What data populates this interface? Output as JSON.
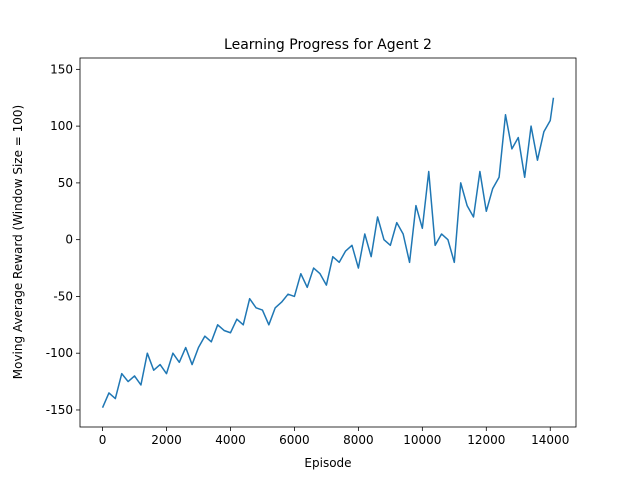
{
  "chart_data": {
    "type": "line",
    "title": "Learning Progress for Agent 2",
    "xlabel": "Episode",
    "ylabel": "Moving Average Reward (Window Size = 100)",
    "color": "#1f77b4",
    "x": [
      0,
      200,
      400,
      600,
      800,
      1000,
      1200,
      1400,
      1600,
      1800,
      2000,
      2200,
      2400,
      2600,
      2800,
      3000,
      3200,
      3400,
      3600,
      3800,
      4000,
      4200,
      4400,
      4600,
      4800,
      5000,
      5200,
      5400,
      5600,
      5800,
      6000,
      6200,
      6400,
      6600,
      6800,
      7000,
      7200,
      7400,
      7600,
      7800,
      8000,
      8200,
      8400,
      8600,
      8800,
      9000,
      9200,
      9400,
      9600,
      9800,
      10000,
      10200,
      10400,
      10600,
      10800,
      11000,
      11200,
      11400,
      11600,
      11800,
      12000,
      12200,
      12400,
      12600,
      12800,
      13000,
      13200,
      13400,
      13600,
      13800,
      14000,
      14100
    ],
    "values": [
      -148,
      -135,
      -140,
      -118,
      -125,
      -120,
      -128,
      -100,
      -115,
      -110,
      -118,
      -100,
      -108,
      -95,
      -110,
      -95,
      -85,
      -90,
      -75,
      -80,
      -82,
      -70,
      -75,
      -52,
      -60,
      -62,
      -75,
      -60,
      -55,
      -48,
      -50,
      -30,
      -42,
      -25,
      -30,
      -40,
      -15,
      -20,
      -10,
      -5,
      -25,
      5,
      -15,
      20,
      0,
      -5,
      15,
      5,
      -20,
      30,
      10,
      60,
      -5,
      5,
      0,
      -20,
      50,
      30,
      20,
      60,
      25,
      45,
      55,
      110,
      80,
      90,
      55,
      100,
      70,
      95,
      105,
      125
    ],
    "xlim": [
      -705,
      14805
    ],
    "ylim": [
      -165,
      160
    ],
    "xticks": [
      0,
      2000,
      4000,
      6000,
      8000,
      10000,
      12000,
      14000
    ],
    "yticks": [
      -150,
      -100,
      -50,
      0,
      50,
      100,
      150
    ]
  }
}
